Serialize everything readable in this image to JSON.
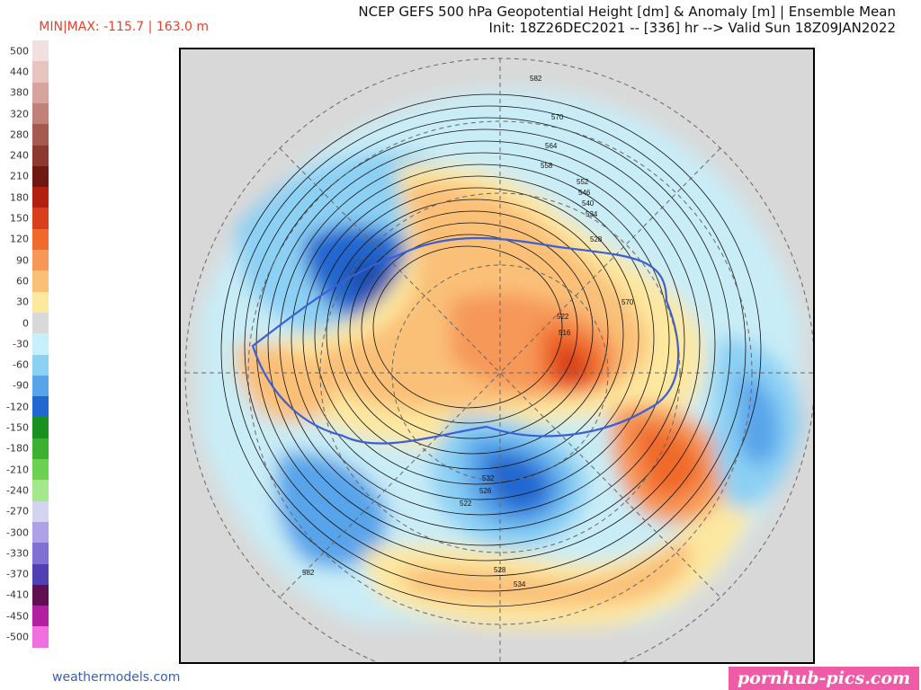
{
  "title": {
    "line1": "NCEP GEFS 500 hPa Geopotential Height [dm] & Anomaly [m] | Ensemble Mean",
    "line2": "Init: 18Z26DEC2021 -- [336] hr --> Valid Sun 18Z09JAN2022"
  },
  "minmax": "MIN|MAX: -115.7 | 163.0 m",
  "legend": {
    "levels": [
      "500",
      "440",
      "380",
      "320",
      "280",
      "240",
      "210",
      "180",
      "150",
      "120",
      "90",
      "60",
      "30",
      "0",
      "-30",
      "-60",
      "-90",
      "-120",
      "-150",
      "-180",
      "-210",
      "-240",
      "-270",
      "-300",
      "-330",
      "-370",
      "-410",
      "-450",
      "-500"
    ],
    "colors": [
      "#f2e0e0",
      "#e6c4c0",
      "#d6a49c",
      "#c08278",
      "#a45a4e",
      "#8c3a2e",
      "#6e1a10",
      "#b42010",
      "#d8401c",
      "#f06a2c",
      "#f69858",
      "#fac078",
      "#fde8a0",
      "#d9d9d9",
      "#c6f0fb",
      "#8cd0f4",
      "#58a4ea",
      "#2068d0",
      "#1a9020",
      "#3cb030",
      "#6cd050",
      "#a4e88c",
      "#d4d4f0",
      "#b0a0e6",
      "#8070d2",
      "#5040b2",
      "#601050",
      "#b020a0",
      "#f070e0"
    ]
  },
  "contour_labels": [
    "582",
    "570",
    "564",
    "558",
    "552",
    "546",
    "540",
    "534",
    "528",
    "522",
    "516",
    "532",
    "526",
    "522",
    "528",
    "534",
    "570",
    "582"
  ],
  "credit": "weathermodels.com",
  "watermark": "pornhub-pics.com"
}
